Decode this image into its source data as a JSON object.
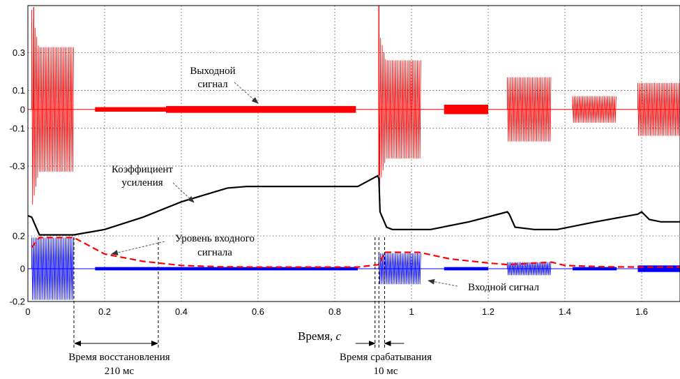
{
  "chart_data": {
    "type": "line",
    "title": "",
    "xlabel_main": "Время, ",
    "xlabel_unit": "с",
    "xlim": [
      0,
      1.7
    ],
    "x_ticks": [
      "0",
      "0.2",
      "0.4",
      "0.6",
      "0.8",
      "1",
      "1.2",
      "1.4",
      "1.6"
    ],
    "grid": true,
    "panels": [
      {
        "name": "output",
        "ylim": [
          -0.5,
          0.55
        ],
        "y_ticks": [
          "0.3",
          "0.1",
          "0",
          "-0.1",
          "-0.3"
        ],
        "y_tick_values": [
          0.3,
          0.1,
          0,
          -0.1,
          -0.3
        ],
        "color": "#ff0000",
        "bursts": [
          {
            "start": 0.01,
            "end": 0.12,
            "amplitude": 0.33
          },
          {
            "start": 0.175,
            "end": 0.36,
            "amplitude": 0.012
          },
          {
            "start": 0.36,
            "end": 0.855,
            "amplitude": 0.018
          },
          {
            "start": 0.915,
            "end": 1.025,
            "amplitude": 0.26
          },
          {
            "start": 1.085,
            "end": 1.2,
            "amplitude": 0.025
          },
          {
            "start": 1.25,
            "end": 1.365,
            "amplitude": 0.17
          },
          {
            "start": 1.42,
            "end": 1.535,
            "amplitude": 0.07
          },
          {
            "start": 1.59,
            "end": 1.7,
            "amplitude": 0.14
          }
        ]
      },
      {
        "name": "gain",
        "ylim": [
          0,
          1
        ],
        "y_ticks": [],
        "color": "#000000",
        "points": [
          [
            0.0,
            0.3
          ],
          [
            0.01,
            0.28
          ],
          [
            0.03,
            0.05
          ],
          [
            0.12,
            0.05
          ],
          [
            0.2,
            0.12
          ],
          [
            0.3,
            0.28
          ],
          [
            0.4,
            0.48
          ],
          [
            0.52,
            0.66
          ],
          [
            0.57,
            0.68
          ],
          [
            0.86,
            0.68
          ],
          [
            0.912,
            0.82
          ],
          [
            0.915,
            0.78
          ],
          [
            0.918,
            0.35
          ],
          [
            0.935,
            0.15
          ],
          [
            0.95,
            0.12
          ],
          [
            1.05,
            0.12
          ],
          [
            1.15,
            0.22
          ],
          [
            1.25,
            0.35
          ],
          [
            1.255,
            0.32
          ],
          [
            1.27,
            0.15
          ],
          [
            1.32,
            0.12
          ],
          [
            1.38,
            0.12
          ],
          [
            1.48,
            0.22
          ],
          [
            1.59,
            0.32
          ],
          [
            1.6,
            0.35
          ],
          [
            1.62,
            0.25
          ],
          [
            1.65,
            0.22
          ],
          [
            1.7,
            0.22
          ]
        ]
      },
      {
        "name": "input",
        "ylim": [
          -0.2,
          0.2
        ],
        "y_ticks": [
          "0.2",
          "0",
          "-0.2"
        ],
        "y_tick_values": [
          0.2,
          0,
          -0.2
        ],
        "color": "#0000ff",
        "level_color": "#ff0000",
        "bursts": [
          {
            "start": 0.01,
            "end": 0.12,
            "amplitude": 0.19
          },
          {
            "start": 0.175,
            "end": 0.86,
            "amplitude": 0.01
          },
          {
            "start": 0.915,
            "end": 1.025,
            "amplitude": 0.095
          },
          {
            "start": 1.085,
            "end": 1.2,
            "amplitude": 0.01
          },
          {
            "start": 1.25,
            "end": 1.365,
            "amplitude": 0.04
          },
          {
            "start": 1.42,
            "end": 1.535,
            "amplitude": 0.01
          },
          {
            "start": 1.59,
            "end": 1.7,
            "amplitude": 0.02
          }
        ],
        "level_points": [
          [
            0.01,
            0.13
          ],
          [
            0.03,
            0.19
          ],
          [
            0.12,
            0.19
          ],
          [
            0.2,
            0.09
          ],
          [
            0.3,
            0.045
          ],
          [
            0.4,
            0.02
          ],
          [
            0.5,
            0.012
          ],
          [
            0.6,
            0.01
          ],
          [
            0.86,
            0.01
          ],
          [
            0.915,
            0.025
          ],
          [
            0.93,
            0.1
          ],
          [
            1.02,
            0.1
          ],
          [
            1.1,
            0.06
          ],
          [
            1.2,
            0.035
          ],
          [
            1.25,
            0.025
          ],
          [
            1.365,
            0.04
          ],
          [
            1.4,
            0.02
          ],
          [
            1.5,
            0.012
          ],
          [
            1.6,
            0.01
          ],
          [
            1.7,
            0.01
          ]
        ]
      }
    ],
    "annotations": {
      "output_signal": [
        "Выходной",
        "сигнал"
      ],
      "gain": [
        "Коэффициент",
        "усиления"
      ],
      "input_level": [
        "Уровень входного",
        "сигнала"
      ],
      "input_signal": "Входной сигнал",
      "recovery_time": [
        "Время восстановления",
        "210 мс"
      ],
      "attack_time": [
        "Время срабатывания",
        "10 мс"
      ]
    },
    "markers": {
      "recovery": [
        0.12,
        0.34
      ],
      "attack": [
        0.905,
        0.915,
        0.93
      ]
    }
  }
}
